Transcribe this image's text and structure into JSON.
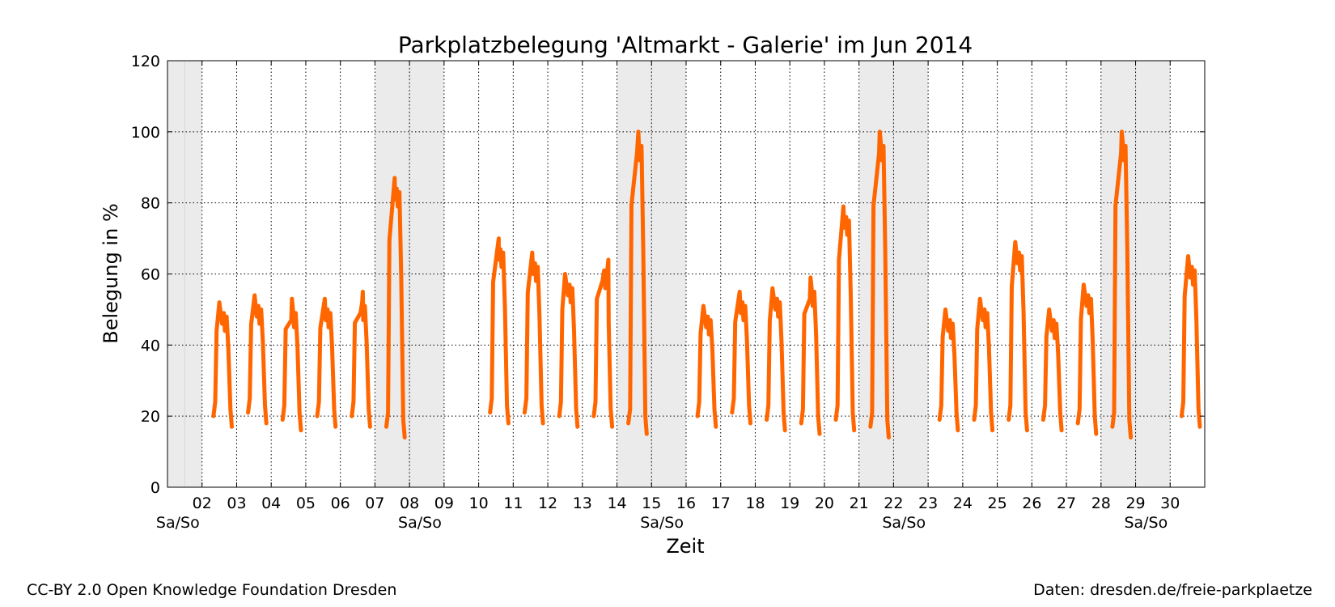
{
  "chart_data": {
    "type": "line",
    "title": "Parkplatzbelegung 'Altmarkt - Galerie' im Jun 2014",
    "xlabel": "Zeit",
    "ylabel": "Belegung in %",
    "ylim": [
      0,
      120
    ],
    "xlim": [
      1,
      31
    ],
    "yticks": [
      0,
      20,
      40,
      60,
      80,
      100,
      120
    ],
    "xticks": [
      2,
      3,
      4,
      5,
      6,
      7,
      8,
      9,
      10,
      11,
      12,
      13,
      14,
      15,
      16,
      17,
      18,
      19,
      20,
      21,
      22,
      23,
      24,
      25,
      26,
      27,
      28,
      29,
      30
    ],
    "xtick_labels": [
      "02",
      "03",
      "04",
      "05",
      "06",
      "07",
      "08",
      "09",
      "10",
      "11",
      "12",
      "13",
      "14",
      "15",
      "16",
      "17",
      "18",
      "19",
      "20",
      "21",
      "22",
      "23",
      "24",
      "25",
      "26",
      "27",
      "28",
      "29",
      "30"
    ],
    "weekend_label": "Sa/So",
    "weekend_label_positions": [
      1.3,
      8.3,
      15.3,
      22.3,
      29.3
    ],
    "weekends": [
      [
        1,
        2
      ],
      [
        7,
        9
      ],
      [
        14,
        16
      ],
      [
        21,
        23
      ],
      [
        28,
        30
      ]
    ],
    "grid": true,
    "line_color": "#ff6600",
    "weekend_color": "#ebebeb",
    "daily_peaks": [
      {
        "day": 2,
        "start": 20,
        "peak": 52,
        "peak_time": 0.5
      },
      {
        "day": 3,
        "start": 21,
        "peak": 54,
        "peak_time": 0.52
      },
      {
        "day": 4,
        "start": 19,
        "peak": 53,
        "peak_time": 0.6
      },
      {
        "day": 5,
        "start": 20,
        "peak": 53,
        "peak_time": 0.55
      },
      {
        "day": 6,
        "start": 20,
        "peak": 55,
        "peak_time": 0.65
      },
      {
        "day": 7,
        "start": 17,
        "peak": 87,
        "peak_time": 0.57
      },
      {
        "day": 10,
        "start": 21,
        "peak": 70,
        "peak_time": 0.58
      },
      {
        "day": 11,
        "start": 21,
        "peak": 66,
        "peak_time": 0.55
      },
      {
        "day": 12,
        "start": 20,
        "peak": 60,
        "peak_time": 0.5
      },
      {
        "day": 13,
        "start": 20,
        "peak": 64,
        "peak_time": 0.75
      },
      {
        "day": 14,
        "start": 18,
        "peak": 100,
        "peak_time": 0.62
      },
      {
        "day": 16,
        "start": 20,
        "peak": 51,
        "peak_time": 0.5
      },
      {
        "day": 17,
        "start": 21,
        "peak": 55,
        "peak_time": 0.55
      },
      {
        "day": 18,
        "start": 19,
        "peak": 56,
        "peak_time": 0.5
      },
      {
        "day": 19,
        "start": 18,
        "peak": 59,
        "peak_time": 0.6
      },
      {
        "day": 20,
        "start": 19,
        "peak": 79,
        "peak_time": 0.55
      },
      {
        "day": 21,
        "start": 17,
        "peak": 100,
        "peak_time": 0.6
      },
      {
        "day": 23,
        "start": 19,
        "peak": 50,
        "peak_time": 0.5
      },
      {
        "day": 24,
        "start": 19,
        "peak": 53,
        "peak_time": 0.5
      },
      {
        "day": 25,
        "start": 19,
        "peak": 69,
        "peak_time": 0.52
      },
      {
        "day": 26,
        "start": 19,
        "peak": 50,
        "peak_time": 0.5
      },
      {
        "day": 27,
        "start": 18,
        "peak": 57,
        "peak_time": 0.5
      },
      {
        "day": 28,
        "start": 17,
        "peak": 100,
        "peak_time": 0.6
      },
      {
        "day": 30,
        "start": 20,
        "peak": 65,
        "peak_time": 0.52
      }
    ]
  },
  "footer": {
    "credit_left": "CC-BY 2.0 Open Knowledge Foundation Dresden",
    "credit_right": "Daten: dresden.de/freie-parkplaetze"
  }
}
